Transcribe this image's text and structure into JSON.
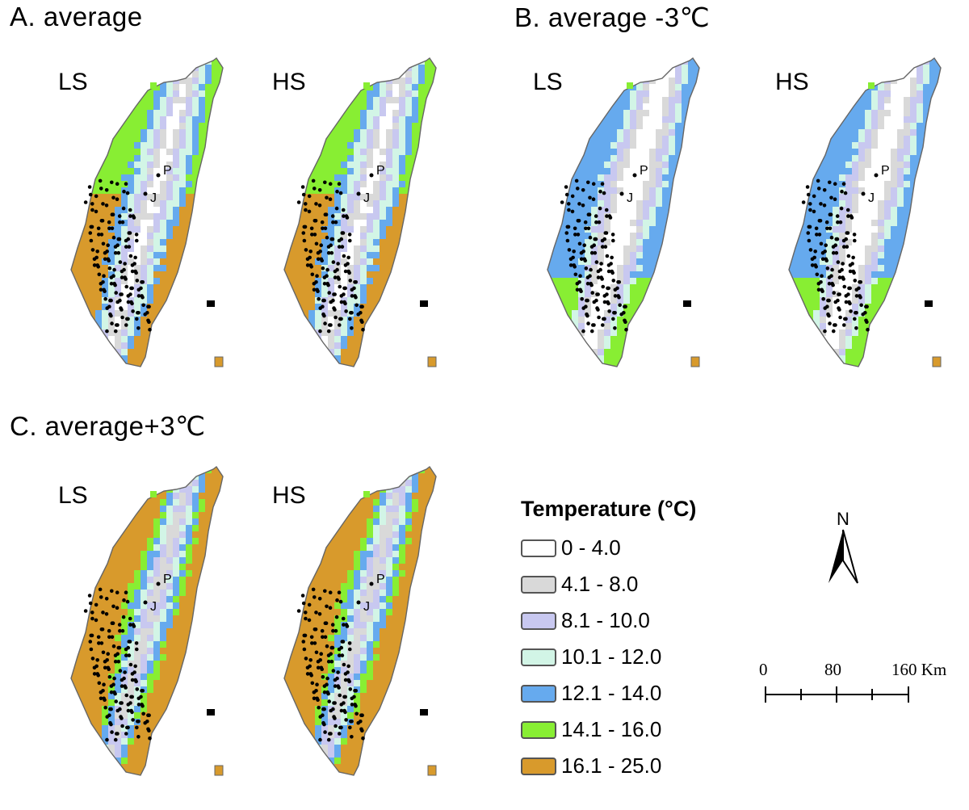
{
  "panels": [
    {
      "title": "A. average",
      "maps": [
        {
          "label": "LS",
          "scheme": "A",
          "site_p": "P",
          "site_j": "J"
        },
        {
          "label": "HS",
          "scheme": "A",
          "site_p": "P",
          "site_j": "J"
        }
      ]
    },
    {
      "title": "B. average -3℃",
      "maps": [
        {
          "label": "LS",
          "scheme": "B",
          "site_p": "P",
          "site_j": "J"
        },
        {
          "label": "HS",
          "scheme": "B",
          "site_p": "P",
          "site_j": "J"
        }
      ]
    },
    {
      "title": "C. average+3℃",
      "maps": [
        {
          "label": "LS",
          "scheme": "C",
          "site_p": "P",
          "site_j": "J"
        },
        {
          "label": "HS",
          "scheme": "C",
          "site_p": "P",
          "site_j": "J"
        }
      ]
    }
  ],
  "legend": {
    "title": "Temperature (°C)",
    "classes": [
      {
        "range": "0 - 4.0",
        "color": "#ffffff"
      },
      {
        "range": "4.1 - 8.0",
        "color": "#d9d9d9"
      },
      {
        "range": "8.1 - 10.0",
        "color": "#c8c8f0"
      },
      {
        "range": "10.1 - 12.0",
        "color": "#d2f5e6"
      },
      {
        "range": "12.1 - 14.0",
        "color": "#66aaee"
      },
      {
        "range": "14.1 - 16.0",
        "color": "#88ee33"
      },
      {
        "range": "16.1 - 25.0",
        "color": "#d89a2c"
      }
    ]
  },
  "north_arrow": {
    "letter": "N"
  },
  "scale_bar": {
    "labels": [
      "0",
      "80",
      "160 Km"
    ]
  }
}
